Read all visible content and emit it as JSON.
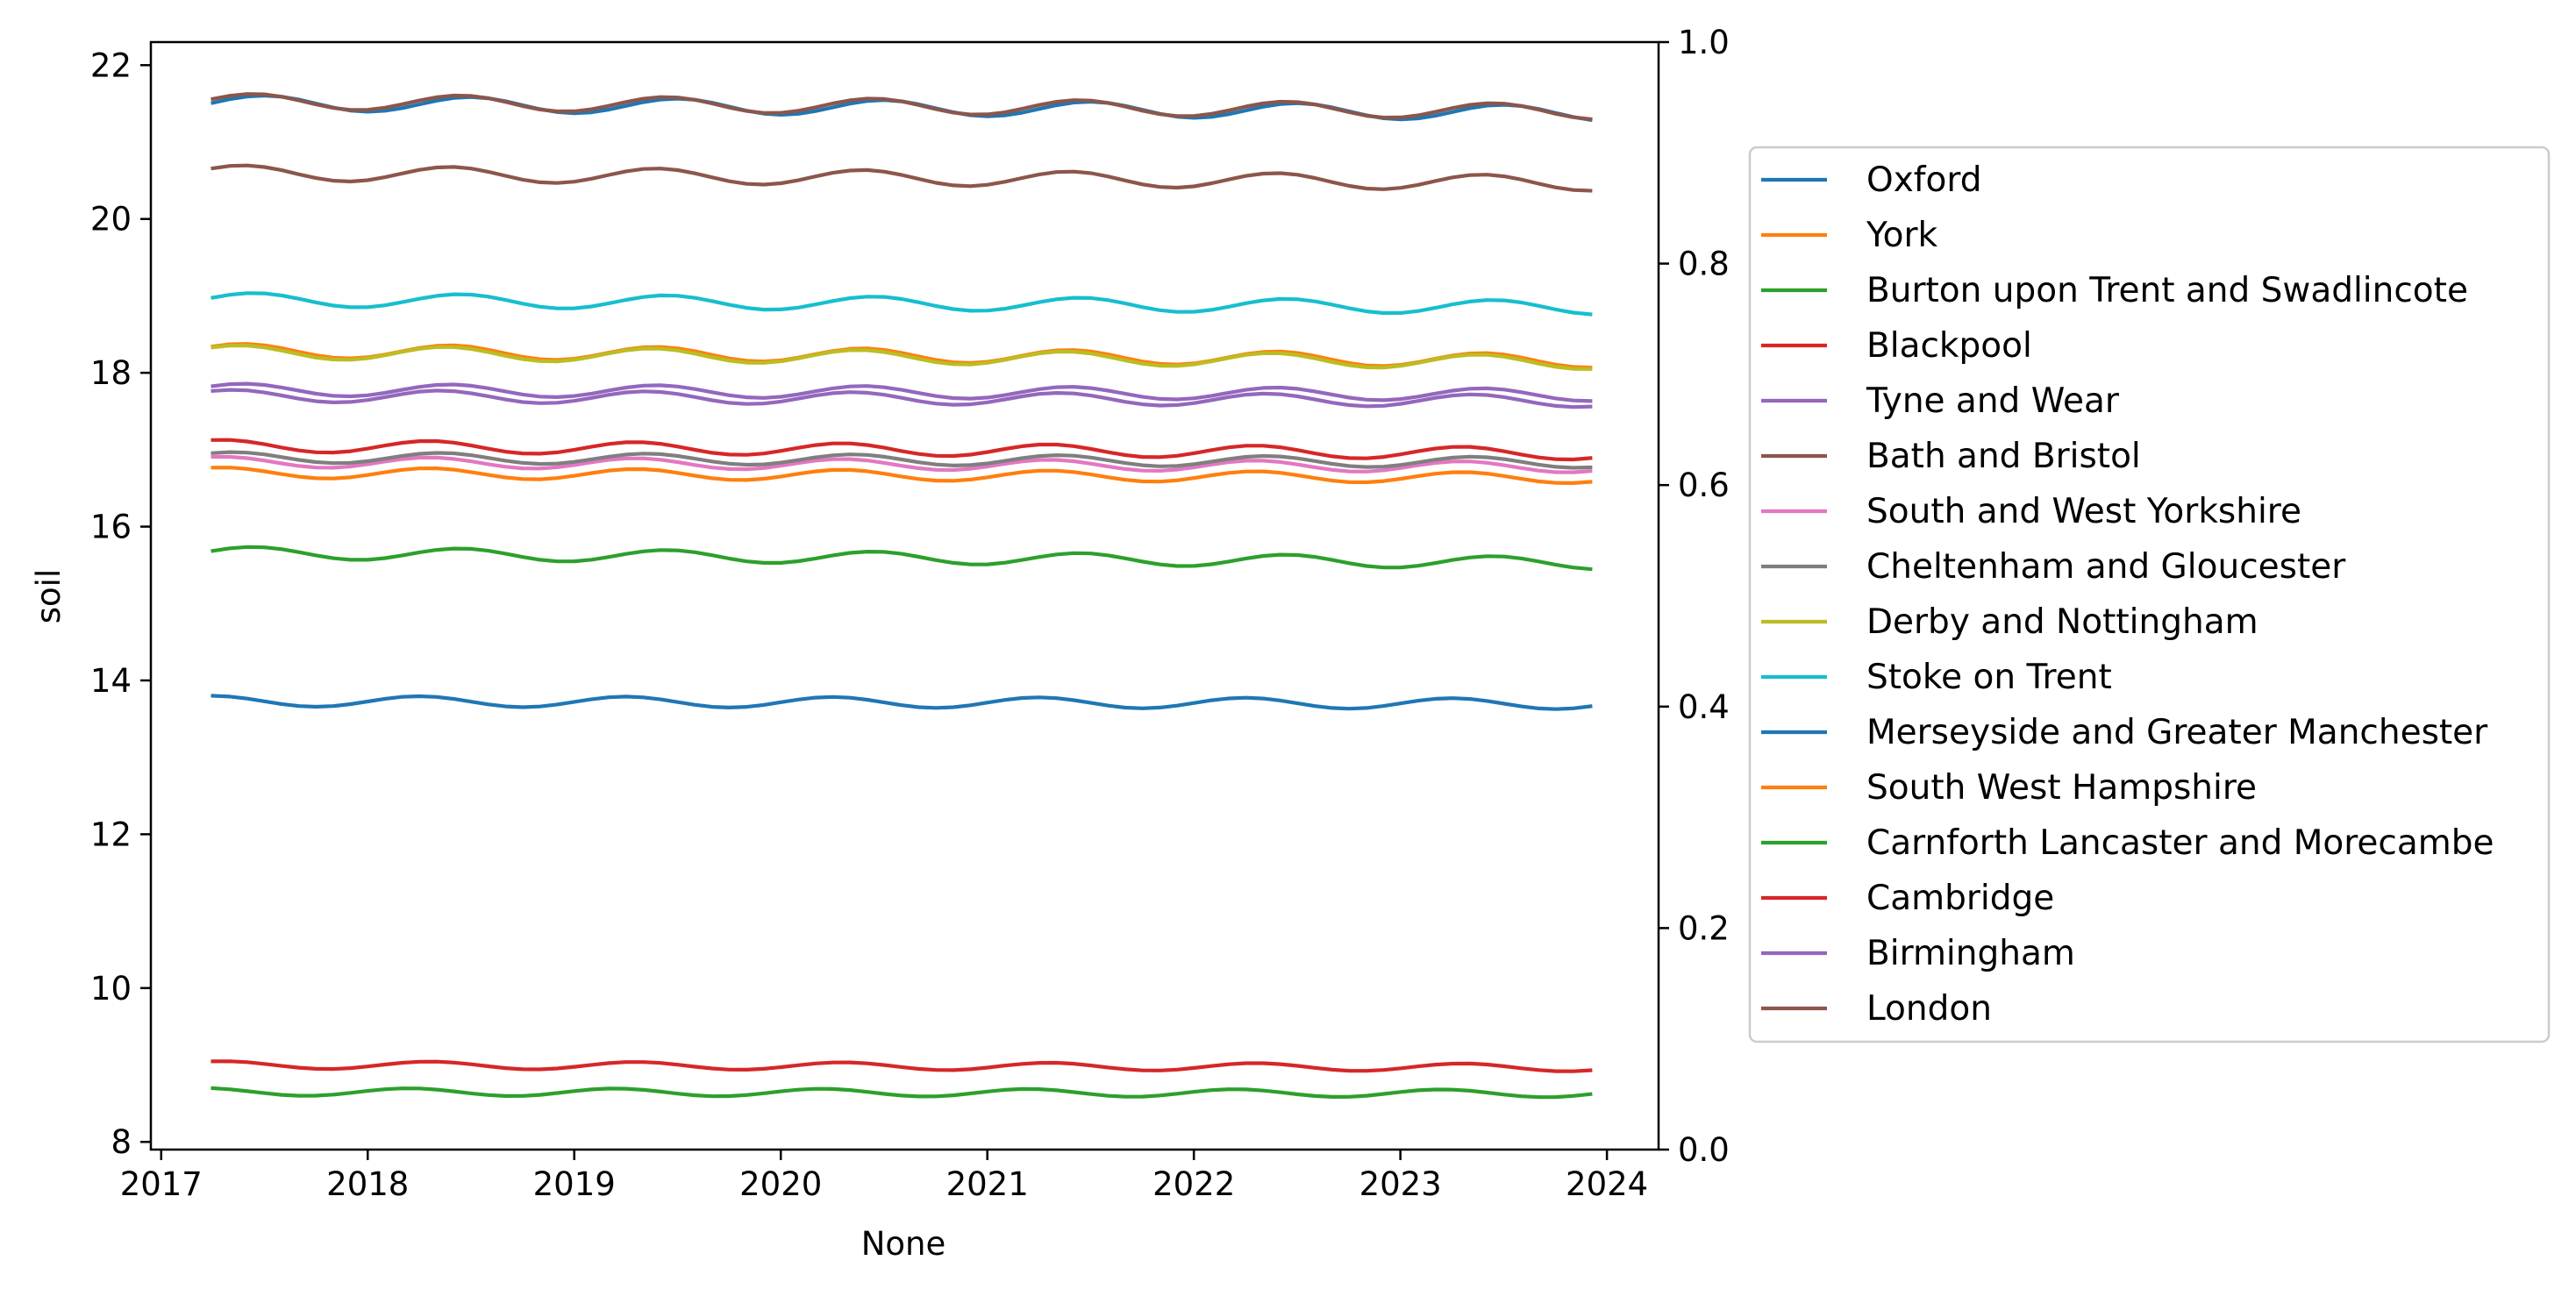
{
  "chart_data": {
    "type": "line",
    "title": "",
    "xlabel": "None",
    "ylabel": "soil",
    "xlim": [
      2016.95,
      2024.25
    ],
    "ylim": [
      7.9,
      22.3
    ],
    "y2lim": [
      0.0,
      1.0
    ],
    "grid": false,
    "legend_placement": "right, outside plot area",
    "x_ticks": [
      "2017",
      "2018",
      "2019",
      "2020",
      "2021",
      "2022",
      "2023",
      "2024"
    ],
    "y_ticks": [
      "8",
      "10",
      "12",
      "14",
      "16",
      "18",
      "20",
      "22"
    ],
    "y2_ticks": [
      "0.0",
      "0.2",
      "0.4",
      "0.6",
      "0.8",
      "1.0"
    ],
    "x_start": 2017.25,
    "x_end": 2023.92,
    "series": [
      {
        "name": "Oxford",
        "color": "#1f77b4",
        "base": 21.51,
        "amp": 0.1,
        "phase": 0.0,
        "trend": -0.02
      },
      {
        "name": "York",
        "color": "#ff7f0e",
        "base": 18.29,
        "amp": 0.09,
        "phase": 0.1,
        "trend": -0.02
      },
      {
        "name": "Burton upon Trent and Swadlincote",
        "color": "#2ca02c",
        "base": 15.66,
        "amp": 0.08,
        "phase": 0.05,
        "trend": -0.02
      },
      {
        "name": "Blackpool",
        "color": "#d62728",
        "base": 9.0,
        "amp": 0.05,
        "phase": 0.2,
        "trend": -0.005
      },
      {
        "name": "Tyne and Wear",
        "color": "#9467bd",
        "base": 17.7,
        "amp": 0.08,
        "phase": 0.15,
        "trend": -0.01
      },
      {
        "name": "Bath and Bristol",
        "color": "#8c564b",
        "base": 20.6,
        "amp": 0.1,
        "phase": 0.1,
        "trend": -0.02
      },
      {
        "name": "South and West Yorkshire",
        "color": "#e377c2",
        "base": 16.84,
        "amp": 0.07,
        "phase": 0.2,
        "trend": -0.01
      },
      {
        "name": "Cheltenham and Gloucester",
        "color": "#7f7f7f",
        "base": 16.9,
        "amp": 0.07,
        "phase": 0.15,
        "trend": -0.01
      },
      {
        "name": "Derby and Nottingham",
        "color": "#bcbd22",
        "base": 18.27,
        "amp": 0.09,
        "phase": 0.12,
        "trend": -0.02
      },
      {
        "name": "Stoke on Trent",
        "color": "#17becf",
        "base": 18.95,
        "amp": 0.09,
        "phase": 0.05,
        "trend": -0.015
      },
      {
        "name": "Merseyside and Greater Manchester",
        "color": "#1f77b4",
        "base": 13.73,
        "amp": 0.07,
        "phase": 0.25,
        "trend": -0.005
      },
      {
        "name": "South West Hampshire",
        "color": "#ff7f0e",
        "base": 16.7,
        "amp": 0.07,
        "phase": 0.2,
        "trend": -0.01
      },
      {
        "name": "Carnforth Lancaster and Morecambe",
        "color": "#2ca02c",
        "base": 8.65,
        "amp": 0.05,
        "phase": 0.3,
        "trend": -0.003
      },
      {
        "name": "Cambridge",
        "color": "#d62728",
        "base": 17.05,
        "amp": 0.08,
        "phase": 0.2,
        "trend": -0.015
      },
      {
        "name": "Birmingham",
        "color": "#9467bd",
        "base": 17.78,
        "amp": 0.08,
        "phase": 0.1,
        "trend": -0.01
      },
      {
        "name": "London",
        "color": "#8c564b",
        "base": 21.53,
        "amp": 0.1,
        "phase": 0.05,
        "trend": -0.02
      }
    ]
  }
}
